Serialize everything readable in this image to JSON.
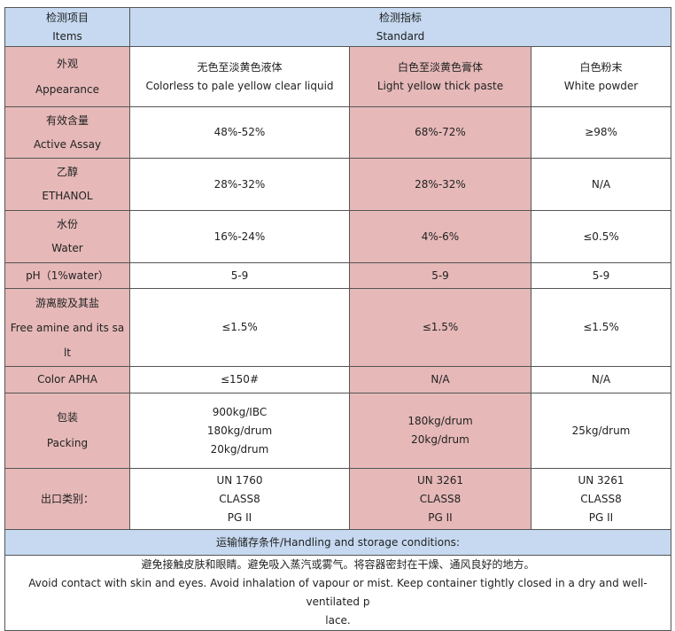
{
  "header": {
    "items_cn": "检测项目",
    "items_en": "Items",
    "standard_cn": "检测指标",
    "standard_en": "Standard"
  },
  "rows": [
    {
      "label_cn": "外观",
      "label_en": "Appearance",
      "v1_cn": "无色至淡黄色液体",
      "v1_en": "Colorless to pale yellow clear liquid",
      "v2_cn": "白色至淡黄色膏体",
      "v2_en": "Light yellow thick paste",
      "v3_cn": "白色粉末",
      "v3_en": "White powder"
    },
    {
      "label_cn": "有效含量",
      "label_en": "Active Assay",
      "v1": "48%-52%",
      "v2": "68%-72%",
      "v3": "≥98%"
    },
    {
      "label_cn": "乙醇",
      "label_en": "ETHANOL",
      "v1": "28%-32%",
      "v2": "28%-32%",
      "v3": "N/A"
    },
    {
      "label_cn": "水份",
      "label_en": "Water",
      "v1": "16%-24%",
      "v2": "4%-6%",
      "v3": "≤0.5%"
    },
    {
      "label": "pH（1%water）",
      "v1": "5-9",
      "v2": "5-9",
      "v3": "5-9"
    },
    {
      "label_cn": "游离胺及其盐",
      "label_en_1": "Free amine and its sa",
      "label_en_2": "lt",
      "v1": "≤1.5%",
      "v2": "≤1.5%",
      "v3": "≤1.5%"
    },
    {
      "label": "Color APHA",
      "v1": "≤150#",
      "v2": "N/A",
      "v3": "N/A"
    },
    {
      "label_cn": "包装",
      "label_en": "Packing",
      "v1": [
        "900kg/IBC",
        "180kg/drum",
        "20kg/drum"
      ],
      "v2": [
        "180kg/drum",
        "20kg/drum"
      ],
      "v3": [
        "25kg/drum"
      ]
    },
    {
      "label": "出口类别：",
      "v1": [
        "UN 1760",
        "CLASS8",
        "PG  II"
      ],
      "v2": [
        "UN 3261",
        "CLASS8",
        "PG  II"
      ],
      "v3": [
        "UN 3261",
        "CLASS8",
        "PG  II"
      ]
    }
  ],
  "handling": {
    "title": "运输储存条件/Handling and storage conditions:",
    "cn": "避免接触皮肤和眼睛。避免吸入蒸汽或雾气。将容器密封在干燥、通风良好的地方。",
    "en_1": "Avoid contact with skin and eyes. Avoid inhalation of vapour or mist. Keep container tightly closed in a dry and well-ventilated p",
    "en_2": "lace."
  },
  "colors": {
    "header_blue": "#c6d9f1",
    "row_pink": "#e6b8b8",
    "border": "#555555"
  }
}
